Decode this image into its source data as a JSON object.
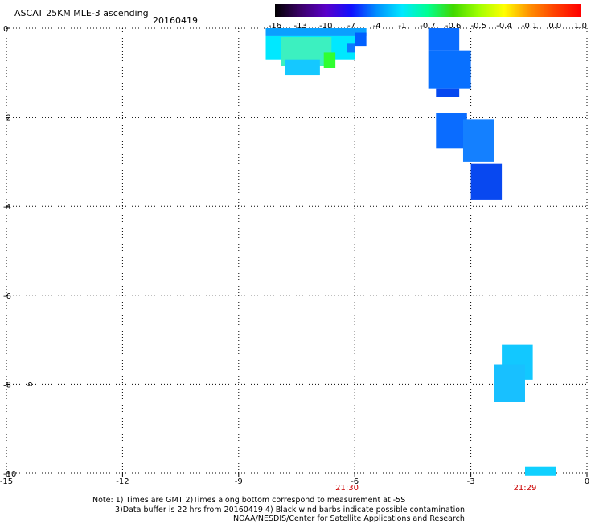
{
  "header": {
    "title": "ASCAT 25KM MLE-3 ascending",
    "date": "20160419"
  },
  "colorbar": {
    "labels": [
      "-16",
      "-13",
      "-10",
      "-7",
      "-4",
      "-1",
      "-0.7",
      "-0.6",
      "-0.5",
      "-0.4",
      "-0.1",
      "0.0",
      "1.0"
    ],
    "colors": [
      "#000000",
      "#3a0068",
      "#5a00c8",
      "#1010ff",
      "#0090ff",
      "#00e8ff",
      "#00ff90",
      "#40d800",
      "#a0ff00",
      "#ffff00",
      "#ff9000",
      "#ff4000",
      "#ff0000"
    ]
  },
  "chart_data": {
    "type": "heatmap",
    "xlim": [
      -15,
      0
    ],
    "ylim": [
      -10,
      0
    ],
    "xticks": [
      "-15",
      "-12",
      "-9",
      "-6",
      "-3",
      "0"
    ],
    "yticks": [
      "0",
      "-2",
      "-4",
      "-6",
      "-8",
      "-10"
    ],
    "grid": true,
    "time_labels": [
      {
        "x": -6.2,
        "text": "21:30"
      },
      {
        "x": -1.6,
        "text": "21:29"
      }
    ],
    "wind_barb_marker": {
      "x": -14.4,
      "y": -8.0,
      "text": "b"
    },
    "cells": [
      {
        "x0": -8.3,
        "x1": -5.7,
        "y0": -0.18,
        "y1": 0,
        "color": "#0aa0ff"
      },
      {
        "x0": -8.3,
        "x1": -6.0,
        "y0": -0.7,
        "y1": -0.18,
        "color": "#00e8ff"
      },
      {
        "x0": -7.9,
        "x1": -6.6,
        "y0": -0.85,
        "y1": -0.2,
        "color": "#3cf0c0"
      },
      {
        "x0": -7.8,
        "x1": -6.9,
        "y0": -1.05,
        "y1": -0.7,
        "color": "#15c8ff"
      },
      {
        "x0": -6.8,
        "x1": -6.5,
        "y0": -0.9,
        "y1": -0.55,
        "color": "#30ff30"
      },
      {
        "x0": -6.0,
        "x1": -5.7,
        "y0": -0.4,
        "y1": -0.1,
        "color": "#0060ff"
      },
      {
        "x0": -6.2,
        "x1": -6.0,
        "y0": -0.55,
        "y1": -0.35,
        "color": "#0a7aff"
      },
      {
        "x0": -4.1,
        "x1": -3.3,
        "y0": -0.5,
        "y1": 0,
        "color": "#0a6cff"
      },
      {
        "x0": -4.1,
        "x1": -3.0,
        "y0": -1.35,
        "y1": -0.5,
        "color": "#0870ff"
      },
      {
        "x0": -3.9,
        "x1": -3.3,
        "y0": -1.55,
        "y1": -1.35,
        "color": "#0548f0"
      },
      {
        "x0": -3.9,
        "x1": -3.1,
        "y0": -2.7,
        "y1": -1.9,
        "color": "#0a6cff"
      },
      {
        "x0": -3.2,
        "x1": -2.4,
        "y0": -3.0,
        "y1": -2.05,
        "color": "#1480ff"
      },
      {
        "x0": -3.0,
        "x1": -2.2,
        "y0": -3.85,
        "y1": -3.05,
        "color": "#0848f0"
      },
      {
        "x0": -2.2,
        "x1": -1.4,
        "y0": -7.9,
        "y1": -7.1,
        "color": "#12c8ff"
      },
      {
        "x0": -2.4,
        "x1": -1.6,
        "y0": -8.4,
        "y1": -7.55,
        "color": "#18c0ff"
      },
      {
        "x0": -1.6,
        "x1": -0.8,
        "y0": -10.05,
        "y1": -9.85,
        "color": "#10d0ff"
      }
    ]
  },
  "notes": {
    "line1": "Note: 1) Times are GMT 2)Times along bottom correspond to measurement at -5S",
    "line2": "3)Data buffer is 22 hrs from 20160419 4) Black wind barbs indicate possible contamination",
    "line3": "NOAA/NESDIS/Center for Satellite Applications and Research"
  }
}
